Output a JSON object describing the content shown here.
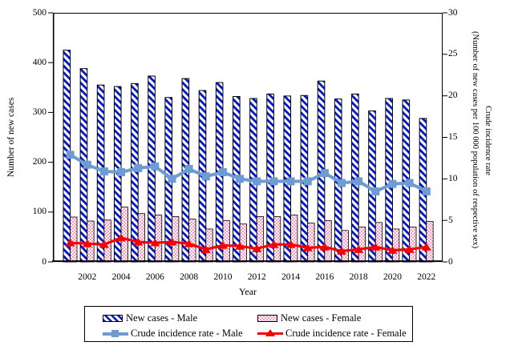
{
  "chart_data": {
    "type": "combo",
    "title": "",
    "x_years": [
      2001,
      2002,
      2003,
      2004,
      2005,
      2006,
      2007,
      2008,
      2009,
      2010,
      2011,
      2012,
      2013,
      2014,
      2015,
      2016,
      2017,
      2018,
      2019,
      2020,
      2021,
      2022
    ],
    "x_tick_labels": [
      "2002",
      "2004",
      "2006",
      "2008",
      "2010",
      "2012",
      "2014",
      "2016",
      "2018",
      "2020",
      "2022"
    ],
    "series": [
      {
        "name": "New cases - Male",
        "type": "bar",
        "axis": "left",
        "pattern": "blue-diagonal-hatch",
        "color": "#0014c8",
        "values": [
          425,
          388,
          355,
          352,
          358,
          373,
          330,
          368,
          344,
          360,
          332,
          328,
          337,
          333,
          334,
          363,
          327,
          337,
          303,
          328,
          325,
          288
        ]
      },
      {
        "name": "New cases - Female",
        "type": "bar",
        "axis": "left",
        "pattern": "pink-checker",
        "color": "#f49ac1",
        "values": [
          90,
          82,
          84,
          110,
          97,
          94,
          91,
          86,
          66,
          83,
          76,
          91,
          91,
          94,
          78,
          83,
          63,
          70,
          79,
          66,
          70,
          81
        ]
      },
      {
        "name": "Crude incidence rate - Male",
        "type": "line",
        "axis": "right",
        "marker": "square",
        "color": "#6d9bd3",
        "values": [
          12.9,
          11.7,
          10.9,
          10.8,
          11.3,
          11.5,
          10.0,
          11.2,
          10.3,
          10.8,
          10.0,
          9.7,
          9.7,
          9.7,
          9.7,
          10.7,
          9.5,
          9.7,
          8.5,
          9.4,
          9.5,
          8.5
        ]
      },
      {
        "name": "Crude incidence rate - Female",
        "type": "line",
        "axis": "right",
        "marker": "triangle",
        "color": "#f90000",
        "values": [
          2.3,
          2.2,
          2.1,
          2.9,
          2.4,
          2.3,
          2.4,
          2.2,
          1.5,
          2.0,
          1.9,
          1.6,
          2.1,
          2.1,
          1.7,
          1.8,
          1.3,
          1.5,
          1.8,
          1.4,
          1.5,
          1.8
        ]
      }
    ],
    "axes": {
      "left": {
        "label": "Number of new cases",
        "min": 0,
        "max": 500,
        "ticks": [
          0,
          100,
          200,
          300,
          400,
          500
        ]
      },
      "right": {
        "label_line1": "Crude incidence rate",
        "label_line2": "(Number of new cases per 100 000 population of respective sex)",
        "min": 0,
        "max": 30,
        "ticks": [
          0,
          5,
          10,
          15,
          20,
          25,
          30
        ]
      },
      "x": {
        "label": "Year"
      }
    },
    "legend_position": "bottom",
    "grid": false
  }
}
